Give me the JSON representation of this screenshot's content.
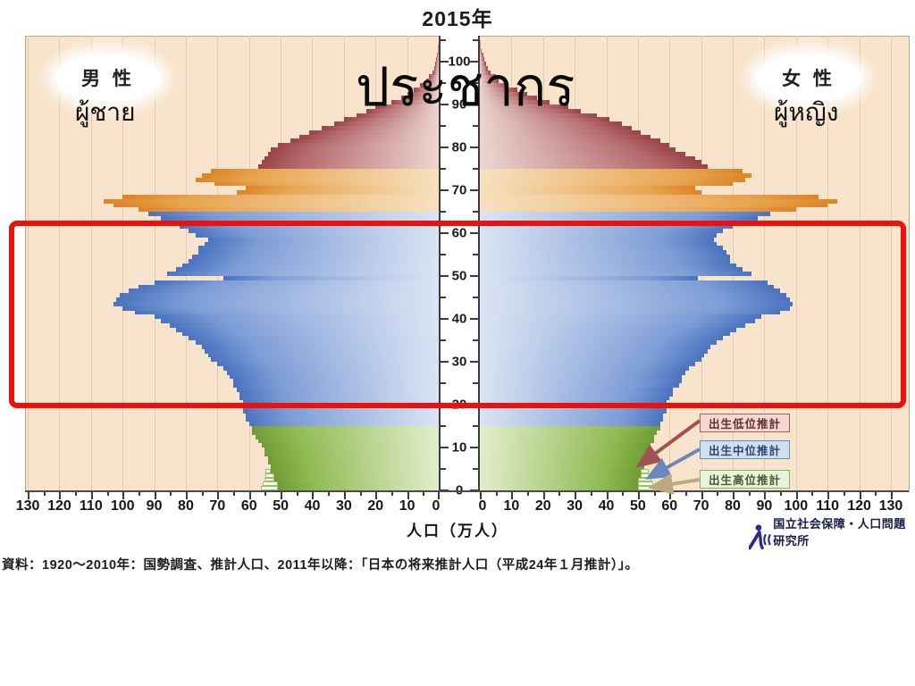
{
  "title": "2015年",
  "overlay": {
    "population_th": "ประชากร"
  },
  "male_panel": {
    "kanji": "男 性",
    "thai": "ผู้ชาย"
  },
  "female_panel": {
    "kanji": "女 性",
    "thai": "ผู้หญิง"
  },
  "axis": {
    "x_title": "人口（万人）",
    "x_ticks": [
      0,
      10,
      20,
      30,
      40,
      50,
      60,
      70,
      80,
      90,
      100,
      110,
      120,
      130
    ],
    "age_ticks": [
      0,
      10,
      20,
      30,
      40,
      50,
      60,
      70,
      80,
      90,
      100
    ]
  },
  "legend": [
    {
      "label": "出生低位推計",
      "fill": "#f4d7d2",
      "border": "#a96058",
      "text_color": "#5e2f2a",
      "arrow_color": "#a15252"
    },
    {
      "label": "出生中位推計",
      "fill": "#cfdff2",
      "border": "#6d8cbb",
      "text_color": "#2c4470",
      "arrow_color": "#6a88bc"
    },
    {
      "label": "出生高位推計",
      "fill": "#e9f2da",
      "border": "#8fae6e",
      "text_color": "#3f5c2a",
      "arrow_color": "#b9aa80"
    }
  ],
  "source_note": "資料：1920〜2010年：国勢調査、推計人口、2011年以降：「日本の将来推計人口（平成24年１月推計）」。",
  "logo": {
    "text": "国立社会保障・人口問題研究所",
    "color": "#2b2b8f"
  },
  "chart_data": {
    "type": "bar",
    "subtype": "population_pyramid",
    "title": "2015年",
    "xlabel": "人口（万人）",
    "unit": "万人 per 1-year age class",
    "x_range_each_side": [
      0,
      130
    ],
    "age_range": [
      0,
      104
    ],
    "grid": true,
    "plot_background": "#f8e3cc",
    "age_color_bands": [
      {
        "ages": [
          0,
          14
        ],
        "name": "0-14",
        "edge": "#6f9c34",
        "mid": "#8fba52",
        "light": "#e2edcc"
      },
      {
        "ages": [
          15,
          64
        ],
        "name": "15-64",
        "edge": "#4a72c0",
        "mid": "#7c9cd6",
        "light": "#dbe4f4"
      },
      {
        "ages": [
          65,
          74
        ],
        "name": "65-74",
        "edge": "#dd8426",
        "mid": "#e8a34e",
        "light": "#f7e1c0"
      },
      {
        "ages": [
          75,
          104
        ],
        "name": "75+",
        "edge": "#9a4347",
        "mid": "#b4696e",
        "light": "#ecd6d0"
      }
    ],
    "series": [
      {
        "name": "男性 (male)",
        "side": "left",
        "values": [
          51,
          51,
          52,
          52,
          53,
          53,
          54,
          54,
          55,
          55,
          56,
          57,
          58,
          59,
          59,
          60,
          61,
          61,
          62,
          62,
          62,
          63,
          63,
          64,
          65,
          65,
          66,
          67,
          68,
          70,
          72,
          73,
          74,
          75,
          77,
          79,
          81,
          83,
          85,
          88,
          90,
          96,
          100,
          103,
          102,
          101,
          98,
          95,
          90,
          68,
          86,
          83,
          81,
          79,
          78,
          76,
          76,
          74,
          73,
          77,
          79,
          82,
          86,
          88,
          92,
          95,
          103,
          106,
          100,
          64,
          61,
          71,
          77,
          75,
          72,
          57,
          56,
          55,
          54,
          53,
          51,
          47,
          44,
          41,
          37,
          33,
          30,
          26,
          23,
          20,
          15,
          12,
          10,
          8,
          6,
          4,
          3,
          2,
          1.5,
          1,
          0.8,
          0.5,
          0.3,
          0.2,
          0.1
        ]
      },
      {
        "name": "女性 (female)",
        "side": "right",
        "values": [
          50,
          50,
          50,
          51,
          51,
          52,
          52,
          52,
          53,
          53,
          54,
          55,
          55,
          56,
          57,
          57,
          58,
          58,
          59,
          59,
          59,
          60,
          61,
          61,
          63,
          64,
          64,
          65,
          66,
          68,
          70,
          71,
          72,
          73,
          75,
          77,
          79,
          81,
          84,
          87,
          89,
          95,
          98,
          99,
          98,
          97,
          95,
          93,
          91,
          69,
          86,
          83,
          81,
          79,
          79,
          78,
          77,
          75,
          74,
          75,
          77,
          80,
          84,
          88,
          92,
          100,
          110,
          113,
          107,
          70,
          68,
          80,
          84,
          86,
          83,
          72,
          70,
          68,
          65,
          62,
          60,
          57,
          54,
          51,
          48,
          45,
          41,
          37,
          32,
          28,
          22,
          18,
          15,
          12,
          9,
          6,
          5,
          3.5,
          2.5,
          2,
          1.5,
          1,
          0.7,
          0.4,
          0.2
        ]
      }
    ],
    "annotations": {
      "highlight_box": {
        "age_from": 20,
        "age_to": 62,
        "color": "#ed100b",
        "note": "red frame over working ages, full chart width"
      },
      "hinoeuma_dip_age": 49,
      "baby_boom_peak_ages": [
        66,
        68
      ],
      "birth_projection_steps": {
        "ages": [
          0,
          1,
          2,
          3,
          4
        ],
        "male": [
          54.5,
          54,
          53.5,
          53,
          53.2
        ],
        "female": [
          53.5,
          53,
          52.5,
          52,
          51.8
        ]
      }
    }
  }
}
